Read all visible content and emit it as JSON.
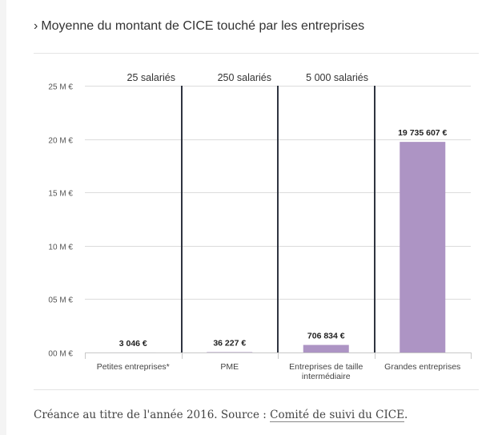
{
  "title": "Moyenne du montant de CICE touché par les entreprises",
  "title_prefix": "›",
  "caption": {
    "text": "Créance au titre de l'année 2016. Source : ",
    "link": "Comité de suivi du CICE",
    "end": "."
  },
  "chart_data": {
    "type": "bar",
    "categories": [
      [
        "Petites entreprises*"
      ],
      [
        "PME"
      ],
      [
        "Entreprises de taille",
        "intermédiaire"
      ],
      [
        "Grandes entreprises"
      ]
    ],
    "values": [
      3046,
      36227,
      706834,
      19735607
    ],
    "value_labels": [
      "3 046 €",
      "36 227 €",
      "706 834 €",
      "19 735 607 €"
    ],
    "ylim": [
      0,
      25000000
    ],
    "yticks": [
      0,
      5000000,
      10000000,
      15000000,
      20000000,
      25000000
    ],
    "ytick_labels": [
      "00 M €",
      "05 M €",
      "10 M €",
      "15 M €",
      "20 M €",
      "25 M €"
    ],
    "thresholds": [
      "25 salariés",
      "250 salariés",
      "5 000 salariés"
    ],
    "grid": true,
    "bar_color": "#ad94c4",
    "threshold_color": "#2f3440"
  }
}
